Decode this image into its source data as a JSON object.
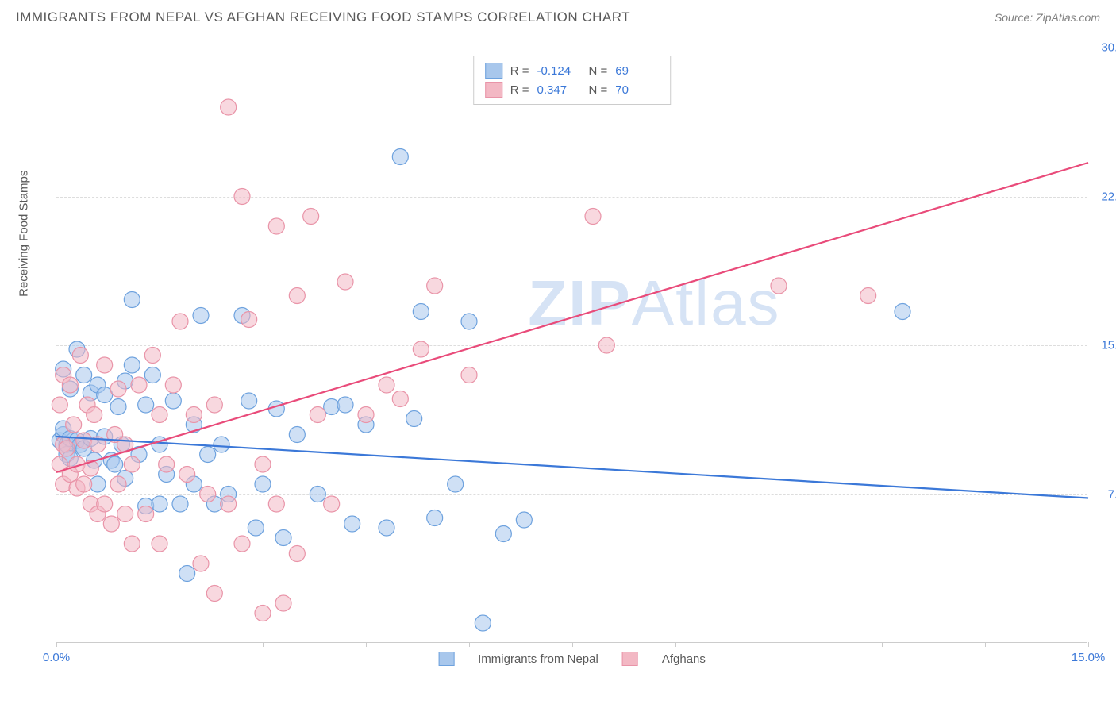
{
  "header": {
    "title": "IMMIGRANTS FROM NEPAL VS AFGHAN RECEIVING FOOD STAMPS CORRELATION CHART",
    "source_prefix": "Source: ",
    "source_name": "ZipAtlas.com"
  },
  "chart": {
    "type": "scatter",
    "ylabel": "Receiving Food Stamps",
    "xlim": [
      0.0,
      15.0
    ],
    "ylim": [
      0.0,
      30.0
    ],
    "xtick_positions": [
      0.0,
      1.5,
      3.0,
      4.5,
      6.0,
      7.5,
      9.0,
      10.5,
      12.0,
      13.5,
      15.0
    ],
    "ytick_positions": [
      0.0,
      7.5,
      15.0,
      22.5,
      30.0
    ],
    "xtick_labels": {
      "0": "0.0%",
      "15": "15.0%"
    },
    "ytick_labels": {
      "7.5": "7.5%",
      "15": "15.0%",
      "22.5": "22.5%",
      "30": "30.0%"
    },
    "grid_color": "#dddddd",
    "axis_color": "#cccccc",
    "background_color": "#ffffff",
    "watermark": "ZIPAtlas",
    "watermark_color": "#d6e3f5",
    "series": [
      {
        "name": "Immigrants from Nepal",
        "fill_color": "#a8c7ec",
        "stroke_color": "#6ea2de",
        "fill_opacity": 0.55,
        "marker_radius": 10,
        "line_color": "#3b78d8",
        "line_width": 2.2,
        "R": "-0.124",
        "N": "69",
        "regression": {
          "x1": 0.0,
          "y1": 10.4,
          "x2": 15.0,
          "y2": 7.3
        },
        "points": [
          [
            0.05,
            10.2
          ],
          [
            0.1,
            10.5
          ],
          [
            0.1,
            10.8
          ],
          [
            0.1,
            13.8
          ],
          [
            0.15,
            9.5
          ],
          [
            0.15,
            10.0
          ],
          [
            0.2,
            9.3
          ],
          [
            0.2,
            12.8
          ],
          [
            0.2,
            10.3
          ],
          [
            0.3,
            10.2
          ],
          [
            0.3,
            14.8
          ],
          [
            0.35,
            10.0
          ],
          [
            0.4,
            9.8
          ],
          [
            0.4,
            13.5
          ],
          [
            0.5,
            12.6
          ],
          [
            0.5,
            10.3
          ],
          [
            0.55,
            9.2
          ],
          [
            0.6,
            13.0
          ],
          [
            0.6,
            8.0
          ],
          [
            0.7,
            10.4
          ],
          [
            0.7,
            12.5
          ],
          [
            0.8,
            9.2
          ],
          [
            0.85,
            9.0
          ],
          [
            0.9,
            11.9
          ],
          [
            0.95,
            10.0
          ],
          [
            1.0,
            13.2
          ],
          [
            1.0,
            8.3
          ],
          [
            1.1,
            14.0
          ],
          [
            1.1,
            17.3
          ],
          [
            1.2,
            9.5
          ],
          [
            1.3,
            12.0
          ],
          [
            1.3,
            6.9
          ],
          [
            1.4,
            13.5
          ],
          [
            1.5,
            10.0
          ],
          [
            1.5,
            7.0
          ],
          [
            1.6,
            8.5
          ],
          [
            1.7,
            12.2
          ],
          [
            1.8,
            7.0
          ],
          [
            1.9,
            3.5
          ],
          [
            2.0,
            8.0
          ],
          [
            2.0,
            11.0
          ],
          [
            2.1,
            16.5
          ],
          [
            2.2,
            9.5
          ],
          [
            2.3,
            7.0
          ],
          [
            2.4,
            10.0
          ],
          [
            2.5,
            7.5
          ],
          [
            2.7,
            16.5
          ],
          [
            2.8,
            12.2
          ],
          [
            2.9,
            5.8
          ],
          [
            3.0,
            8.0
          ],
          [
            3.2,
            11.8
          ],
          [
            3.3,
            5.3
          ],
          [
            3.5,
            10.5
          ],
          [
            3.8,
            7.5
          ],
          [
            4.0,
            11.9
          ],
          [
            4.2,
            12.0
          ],
          [
            4.3,
            6.0
          ],
          [
            4.5,
            11.0
          ],
          [
            4.8,
            5.8
          ],
          [
            5.0,
            24.5
          ],
          [
            5.2,
            11.3
          ],
          [
            5.3,
            16.7
          ],
          [
            5.5,
            6.3
          ],
          [
            5.8,
            8.0
          ],
          [
            6.0,
            16.2
          ],
          [
            6.2,
            1.0
          ],
          [
            6.5,
            5.5
          ],
          [
            6.8,
            6.2
          ],
          [
            12.3,
            16.7
          ]
        ]
      },
      {
        "name": "Afghans",
        "fill_color": "#f3b8c4",
        "stroke_color": "#e994a8",
        "fill_opacity": 0.55,
        "marker_radius": 10,
        "line_color": "#e94b7a",
        "line_width": 2.2,
        "R": "0.347",
        "N": "70",
        "regression": {
          "x1": 0.0,
          "y1": 8.6,
          "x2": 15.0,
          "y2": 24.2
        },
        "points": [
          [
            0.05,
            9.0
          ],
          [
            0.05,
            12.0
          ],
          [
            0.1,
            13.5
          ],
          [
            0.1,
            8.0
          ],
          [
            0.1,
            10.0
          ],
          [
            0.15,
            9.8
          ],
          [
            0.2,
            13.0
          ],
          [
            0.2,
            8.5
          ],
          [
            0.25,
            11.0
          ],
          [
            0.3,
            9.0
          ],
          [
            0.3,
            7.8
          ],
          [
            0.35,
            14.5
          ],
          [
            0.4,
            8.0
          ],
          [
            0.4,
            10.2
          ],
          [
            0.45,
            12.0
          ],
          [
            0.5,
            8.8
          ],
          [
            0.5,
            7.0
          ],
          [
            0.55,
            11.5
          ],
          [
            0.6,
            6.5
          ],
          [
            0.6,
            10.0
          ],
          [
            0.7,
            7.0
          ],
          [
            0.7,
            14.0
          ],
          [
            0.8,
            6.0
          ],
          [
            0.85,
            10.5
          ],
          [
            0.9,
            8.0
          ],
          [
            0.9,
            12.8
          ],
          [
            1.0,
            6.5
          ],
          [
            1.0,
            10.0
          ],
          [
            1.1,
            5.0
          ],
          [
            1.1,
            9.0
          ],
          [
            1.2,
            13.0
          ],
          [
            1.3,
            6.5
          ],
          [
            1.4,
            14.5
          ],
          [
            1.5,
            11.5
          ],
          [
            1.5,
            5.0
          ],
          [
            1.6,
            9.0
          ],
          [
            1.7,
            13.0
          ],
          [
            1.8,
            16.2
          ],
          [
            1.9,
            8.5
          ],
          [
            2.0,
            11.5
          ],
          [
            2.1,
            4.0
          ],
          [
            2.2,
            7.5
          ],
          [
            2.3,
            12.0
          ],
          [
            2.3,
            2.5
          ],
          [
            2.5,
            27.0
          ],
          [
            2.5,
            7.0
          ],
          [
            2.7,
            22.5
          ],
          [
            2.7,
            5.0
          ],
          [
            2.8,
            16.3
          ],
          [
            3.0,
            1.5
          ],
          [
            3.0,
            9.0
          ],
          [
            3.2,
            21.0
          ],
          [
            3.2,
            7.0
          ],
          [
            3.3,
            2.0
          ],
          [
            3.5,
            17.5
          ],
          [
            3.5,
            4.5
          ],
          [
            3.7,
            21.5
          ],
          [
            3.8,
            11.5
          ],
          [
            4.0,
            7.0
          ],
          [
            4.2,
            18.2
          ],
          [
            4.5,
            11.5
          ],
          [
            4.8,
            13.0
          ],
          [
            5.0,
            12.3
          ],
          [
            5.3,
            14.8
          ],
          [
            5.5,
            18.0
          ],
          [
            6.0,
            13.5
          ],
          [
            7.8,
            21.5
          ],
          [
            8.0,
            15.0
          ],
          [
            10.5,
            18.0
          ],
          [
            11.8,
            17.5
          ]
        ]
      }
    ],
    "legend_top": {
      "rows": [
        {
          "swatch_fill": "#a8c7ec",
          "swatch_stroke": "#6ea2de",
          "R_label": "R =",
          "R": "-0.124",
          "N_label": "N =",
          "N": "69"
        },
        {
          "swatch_fill": "#f3b8c4",
          "swatch_stroke": "#e994a8",
          "R_label": "R =",
          "R": "0.347",
          "N_label": "N =",
          "N": "70"
        }
      ]
    },
    "legend_bottom": {
      "items": [
        {
          "swatch_fill": "#a8c7ec",
          "swatch_stroke": "#6ea2de",
          "label": "Immigrants from Nepal"
        },
        {
          "swatch_fill": "#f3b8c4",
          "swatch_stroke": "#e994a8",
          "label": "Afghans"
        }
      ]
    }
  }
}
